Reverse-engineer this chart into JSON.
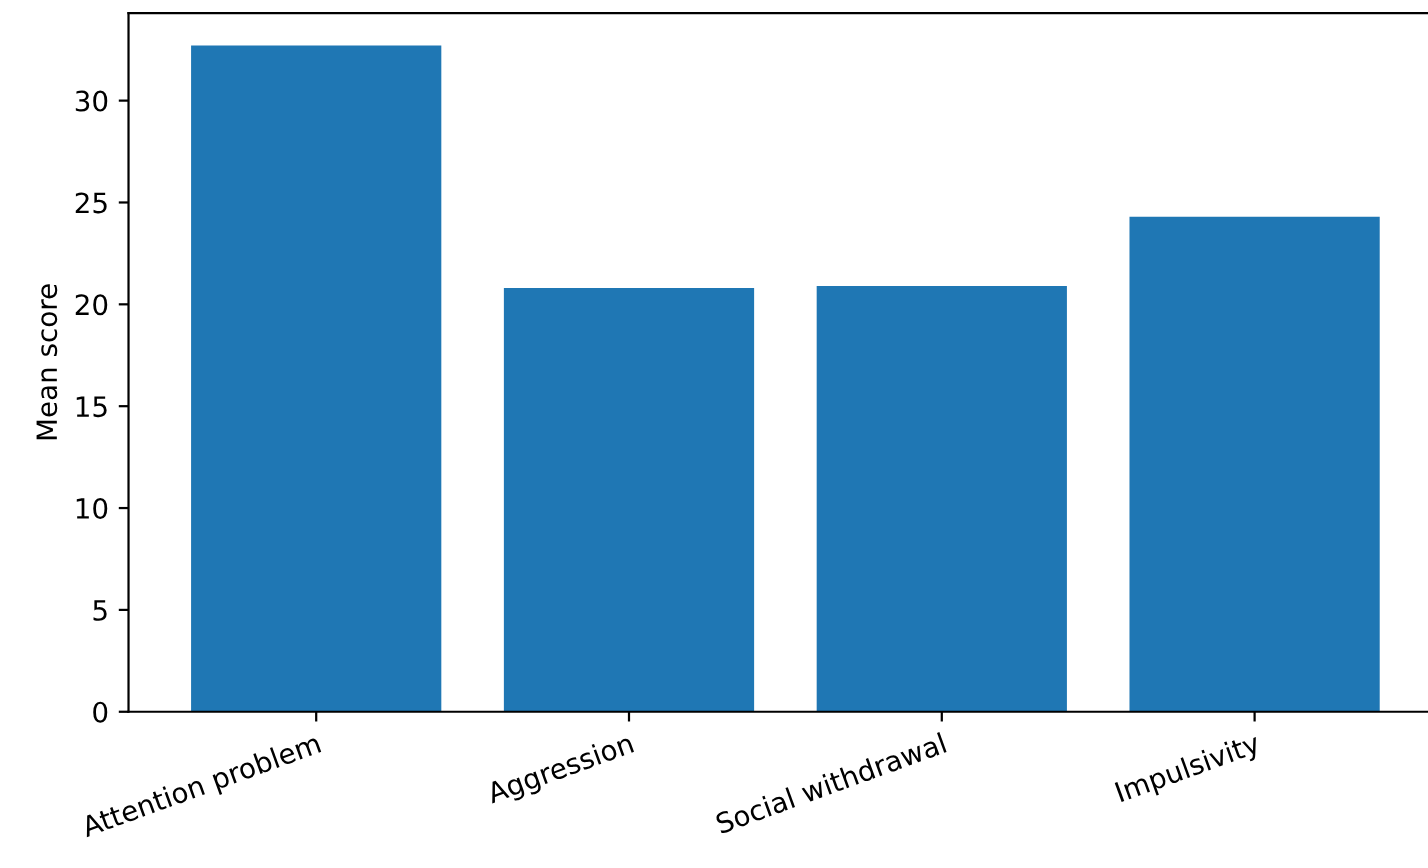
{
  "chart_data": {
    "type": "bar",
    "ylabel": "Mean score",
    "categories": [
      "Attention problem",
      "Aggression",
      "Social withdrawal",
      "Impulsivity"
    ],
    "values": [
      32.7,
      20.8,
      20.9,
      24.3
    ],
    "color": "#1f77b4",
    "ylim": [
      0,
      34.3
    ],
    "yticks": [
      0,
      5,
      10,
      15,
      20,
      25,
      30
    ],
    "grid": false,
    "legend": false
  }
}
